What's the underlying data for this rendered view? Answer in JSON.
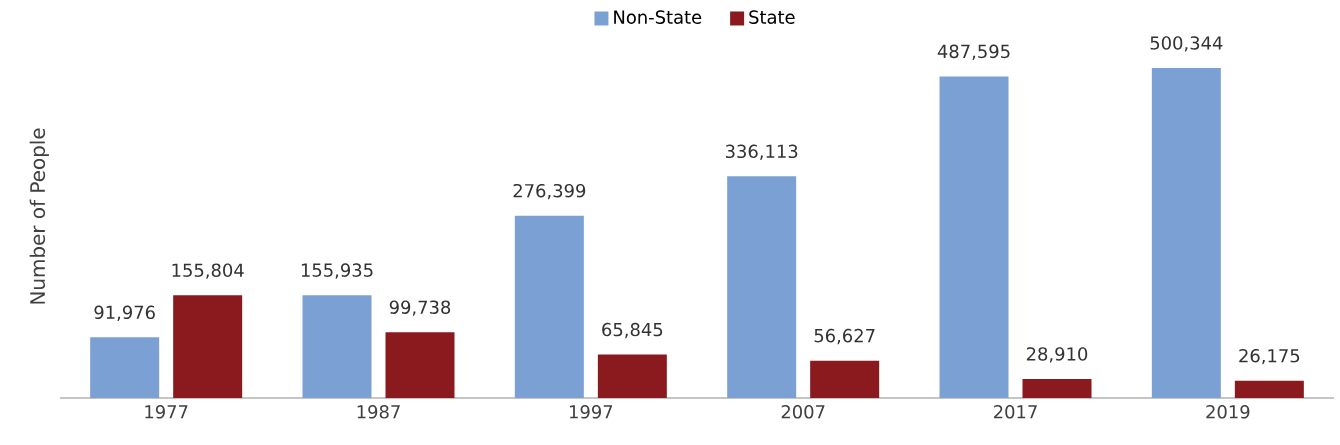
{
  "chart_data": {
    "type": "bar",
    "ylabel": "Number of People",
    "categories": [
      "1977",
      "1987",
      "1997",
      "2007",
      "2017",
      "2019"
    ],
    "series": [
      {
        "name": "Non-State",
        "color": "#7ba1d4",
        "values": [
          91976,
          155935,
          276399,
          336113,
          487595,
          500344
        ],
        "value_labels": [
          "91,976",
          "155,935",
          "276,399",
          "336,113",
          "487,595",
          "500,344"
        ]
      },
      {
        "name": "State",
        "color": "#8b1a1e",
        "values": [
          155804,
          99738,
          65845,
          56627,
          28910,
          26175
        ],
        "value_labels": [
          "155,804",
          "99,738",
          "65,845",
          "56,627",
          "28,910",
          "26,175"
        ]
      }
    ],
    "legend": "top"
  }
}
